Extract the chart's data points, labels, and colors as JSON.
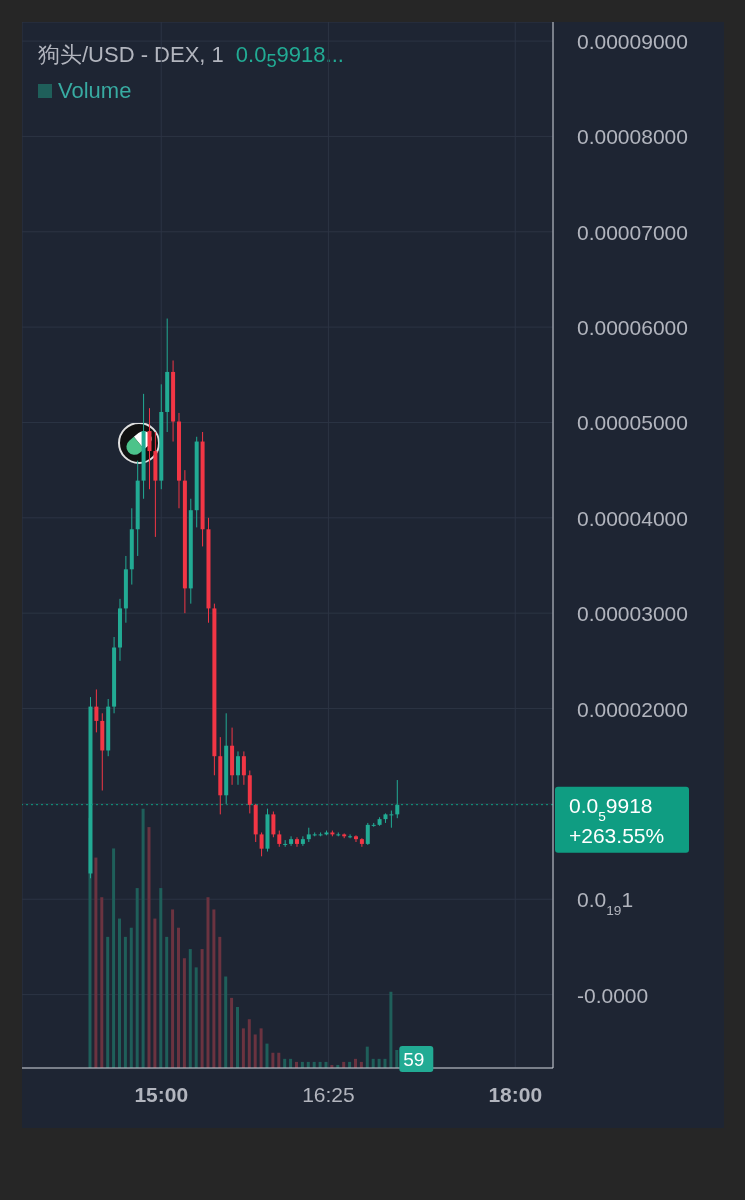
{
  "chart_data": {
    "type": "candlestick",
    "title": "狗头/USD - DEX, 1",
    "subtitle": "0.0$_{5}$9918...",
    "x": [
      14.4,
      14.45,
      14.5,
      14.55,
      14.6,
      14.65,
      14.7,
      14.75,
      14.8,
      14.85,
      14.9,
      14.95,
      15.0,
      15.05,
      15.1,
      15.15,
      15.2,
      15.25,
      15.3,
      15.35,
      15.4,
      15.45,
      15.5,
      15.55,
      15.6,
      15.65,
      15.7,
      15.75,
      15.8,
      15.85,
      15.9,
      15.95,
      16.0,
      16.05,
      16.1,
      16.15,
      16.2,
      16.25,
      16.3,
      16.35,
      16.4,
      16.45,
      16.5,
      16.55,
      16.6,
      16.65,
      16.7,
      16.75,
      16.8,
      16.85,
      16.9,
      16.95,
      17.0
    ],
    "ohlc": [
      [
        2.7e-06,
        2.12e-05,
        2.2e-06,
        2.02e-05
      ],
      [
        2.02e-05,
        2.2e-05,
        1.75e-05,
        1.87e-05
      ],
      [
        1.87e-05,
        1.95e-05,
        1.14e-05,
        1.56e-05
      ],
      [
        1.56e-05,
        2.1e-05,
        1.5e-05,
        2.02e-05
      ],
      [
        2.02e-05,
        2.75e-05,
        1.95e-05,
        2.64e-05
      ],
      [
        2.64e-05,
        3.15e-05,
        2.5e-05,
        3.05e-05
      ],
      [
        3.05e-05,
        3.6e-05,
        2.9e-05,
        3.46e-05
      ],
      [
        3.46e-05,
        4.1e-05,
        3.3e-05,
        3.88e-05
      ],
      [
        3.88e-05,
        4.6e-05,
        3.6e-05,
        4.39e-05
      ],
      [
        4.39e-05,
        5.3e-05,
        4.2e-05,
        4.91e-05
      ],
      [
        4.91e-05,
        5.15e-05,
        4.3e-05,
        4.7e-05
      ],
      [
        4.7e-05,
        4.9e-05,
        3.8e-05,
        4.39e-05
      ],
      [
        4.39e-05,
        5.4e-05,
        4.3e-05,
        5.11e-05
      ],
      [
        5.11e-05,
        6.09e-05,
        4.9e-05,
        5.53e-05
      ],
      [
        5.53e-05,
        5.65e-05,
        4.8e-05,
        5.01e-05
      ],
      [
        5.01e-05,
        5.1e-05,
        4.1e-05,
        4.39e-05
      ],
      [
        4.39e-05,
        4.5e-05,
        3e-05,
        3.26e-05
      ],
      [
        3.26e-05,
        4.2e-05,
        3.1e-05,
        4.08e-05
      ],
      [
        4.08e-05,
        4.85e-05,
        3.9e-05,
        4.8e-05
      ],
      [
        4.8e-05,
        4.9e-05,
        3.7e-05,
        3.88e-05
      ],
      [
        3.88e-05,
        4e-05,
        2.9e-05,
        3.05e-05
      ],
      [
        3.05e-05,
        3.1e-05,
        1.3e-05,
        1.5e-05
      ],
      [
        1.5e-05,
        1.7e-05,
        8.9e-06,
        1.09e-05
      ],
      [
        1.09e-05,
        1.95e-05,
        1e-05,
        1.61e-05
      ],
      [
        1.61e-05,
        1.8e-05,
        1.2e-05,
        1.3e-05
      ],
      [
        1.3e-05,
        1.55e-05,
        1.2e-05,
        1.5e-05
      ],
      [
        1.5e-05,
        1.55e-05,
        1.2e-05,
        1.3e-05
      ],
      [
        1.3e-05,
        1.35e-05,
        9e-06,
        9.9e-06
      ],
      [
        9.9e-06,
        1e-05,
        6e-06,
        6.8e-06
      ],
      [
        6.8e-06,
        7e-06,
        4.5e-06,
        5.3e-06
      ],
      [
        5.3e-06,
        9.5e-06,
        5e-06,
        8.9e-06
      ],
      [
        8.9e-06,
        9.2e-06,
        6.5e-06,
        6.8e-06
      ],
      [
        6.8e-06,
        7.2e-06,
        5.5e-06,
        5.8e-06
      ],
      [
        5.8e-06,
        6.2e-06,
        5.5e-06,
        5.8e-06
      ],
      [
        5.8e-06,
        6.6e-06,
        5.6e-06,
        6.3e-06
      ],
      [
        6.3e-06,
        6.5e-06,
        5.5e-06,
        5.8e-06
      ],
      [
        5.8e-06,
        6.6e-06,
        5.6e-06,
        6.3e-06
      ],
      [
        6.3e-06,
        7.5e-06,
        6e-06,
        6.8e-06
      ],
      [
        6.8e-06,
        7e-06,
        6.6e-06,
        6.8e-06
      ],
      [
        6.8e-06,
        7e-06,
        6.6e-06,
        6.8e-06
      ],
      [
        6.8e-06,
        7.2e-06,
        6.7e-06,
        7e-06
      ],
      [
        7e-06,
        7.2e-06,
        6.6e-06,
        6.8e-06
      ],
      [
        6.8e-06,
        7e-06,
        6.6e-06,
        6.8e-06
      ],
      [
        6.8e-06,
        6.9e-06,
        6.4e-06,
        6.6e-06
      ],
      [
        6.6e-06,
        6.8e-06,
        6.4e-06,
        6.6e-06
      ],
      [
        6.6e-06,
        6.7e-06,
        6e-06,
        6.3e-06
      ],
      [
        6.3e-06,
        6.4e-06,
        5.5e-06,
        5.8e-06
      ],
      [
        5.8e-06,
        8e-06,
        5.7e-06,
        7.8e-06
      ],
      [
        7.8e-06,
        8e-06,
        7.6e-06,
        7.8e-06
      ],
      [
        7.8e-06,
        8.6e-06,
        7.7e-06,
        8.4e-06
      ],
      [
        8.4e-06,
        9e-06,
        8e-06,
        8.9e-06
      ],
      [
        8.9e-06,
        9.3e-06,
        7.5e-06,
        8.9e-06
      ],
      [
        8.9e-06,
        1.25e-05,
        8.5e-06,
        9.9e-06
      ]
    ],
    "colors": [
      "#22ab94",
      "#f23645",
      "#f23645",
      "#22ab94",
      "#22ab94",
      "#22ab94",
      "#22ab94",
      "#22ab94",
      "#22ab94",
      "#22ab94",
      "#f23645",
      "#f23645",
      "#22ab94",
      "#22ab94",
      "#f23645",
      "#f23645",
      "#f23645",
      "#22ab94",
      "#22ab94",
      "#f23645",
      "#f23645",
      "#f23645",
      "#f23645",
      "#22ab94",
      "#f23645",
      "#22ab94",
      "#f23645",
      "#f23645",
      "#f23645",
      "#f23645",
      "#22ab94",
      "#f23645",
      "#f23645",
      "#22ab94",
      "#22ab94",
      "#f23645",
      "#22ab94",
      "#22ab94",
      "#22ab94",
      "#22ab94",
      "#22ab94",
      "#f23645",
      "#22ab94",
      "#f23645",
      "#22ab94",
      "#f23645",
      "#f23645",
      "#22ab94",
      "#22ab94",
      "#22ab94",
      "#22ab94",
      "#22ab94",
      "#22ab94"
    ],
    "series": [
      {
        "name": "Volume",
        "type": "bar",
        "axis": "y2",
        "values": [
          820,
          690,
          560,
          430,
          720,
          490,
          430,
          460,
          590,
          850,
          790,
          490,
          590,
          430,
          520,
          460,
          360,
          390,
          330,
          390,
          560,
          520,
          430,
          300,
          230,
          200,
          130,
          160,
          110,
          130,
          80,
          50,
          50,
          30,
          30,
          20,
          20,
          20,
          20,
          20,
          20,
          10,
          10,
          20,
          20,
          30,
          20,
          70,
          30,
          30,
          30,
          250,
          59
        ],
        "value_labels": [
          null,
          null,
          null,
          null,
          null,
          null,
          null,
          null,
          null,
          null,
          null,
          null,
          null,
          null,
          null,
          null,
          null,
          null,
          null,
          null,
          null,
          null,
          null,
          null,
          null,
          null,
          null,
          null,
          null,
          null,
          null,
          null,
          null,
          null,
          null,
          null,
          null,
          null,
          null,
          null,
          null,
          null,
          null,
          null,
          null,
          null,
          null,
          null,
          null,
          null,
          null,
          null,
          "59"
        ],
        "colors": [
          "#1f5f5a",
          "#6b3340",
          "#6b3340",
          "#1f5f5a",
          "#1f5f5a",
          "#1f5f5a",
          "#1f5f5a",
          "#1f5f5a",
          "#1f5f5a",
          "#1f5f5a",
          "#6b3340",
          "#6b3340",
          "#1f5f5a",
          "#1f5f5a",
          "#6b3340",
          "#6b3340",
          "#6b3340",
          "#1f5f5a",
          "#1f5f5a",
          "#6b3340",
          "#6b3340",
          "#6b3340",
          "#6b3340",
          "#1f5f5a",
          "#6b3340",
          "#1f5f5a",
          "#6b3340",
          "#6b3340",
          "#6b3340",
          "#6b3340",
          "#1f5f5a",
          "#6b3340",
          "#6b3340",
          "#1f5f5a",
          "#1f5f5a",
          "#6b3340",
          "#1f5f5a",
          "#1f5f5a",
          "#1f5f5a",
          "#1f5f5a",
          "#1f5f5a",
          "#6b3340",
          "#1f5f5a",
          "#6b3340",
          "#1f5f5a",
          "#6b3340",
          "#6b3340",
          "#1f5f5a",
          "#1f5f5a",
          "#1f5f5a",
          "#1f5f5a",
          "#1f5f5a",
          "#1f5f5a"
        ]
      }
    ],
    "xlim": [
      13.82,
      18.32
    ],
    "xticks": [
      {
        "value": 15,
        "label": "15:00"
      },
      {
        "value": 16.4167,
        "label": "16:25"
      },
      {
        "value": 18,
        "label": "18:00"
      }
    ],
    "ylim": [
      -1.77e-05,
      9.2e-05
    ],
    "yticks": [
      {
        "value": 9e-05,
        "label": "0.00009000"
      },
      {
        "value": 8e-05,
        "label": "0.00008000"
      },
      {
        "value": 7e-05,
        "label": "0.00007000"
      },
      {
        "value": 6e-05,
        "label": "0.00006000"
      },
      {
        "value": 5e-05,
        "label": "0.00005000"
      },
      {
        "value": 4e-05,
        "label": "0.00004000"
      },
      {
        "value": 3e-05,
        "label": "0.00003000"
      },
      {
        "value": 2e-05,
        "label": "0.00002000"
      },
      {
        "value": 1e-05,
        "label": null
      },
      {
        "value": 1e-20,
        "label": "0.0$_{19}$1"
      },
      {
        "value": -1e-05,
        "label": "-0.0000"
      }
    ],
    "y2lim": [
      0,
      3430
    ],
    "ref_lines": [
      {
        "axis": "y",
        "value": 9.918e-06,
        "label": "0.0$_{5}$9918\n+263.55%",
        "color": "#0f9d82",
        "line_style": "dotted"
      }
    ],
    "grid": true,
    "legend": "top left"
  }
}
